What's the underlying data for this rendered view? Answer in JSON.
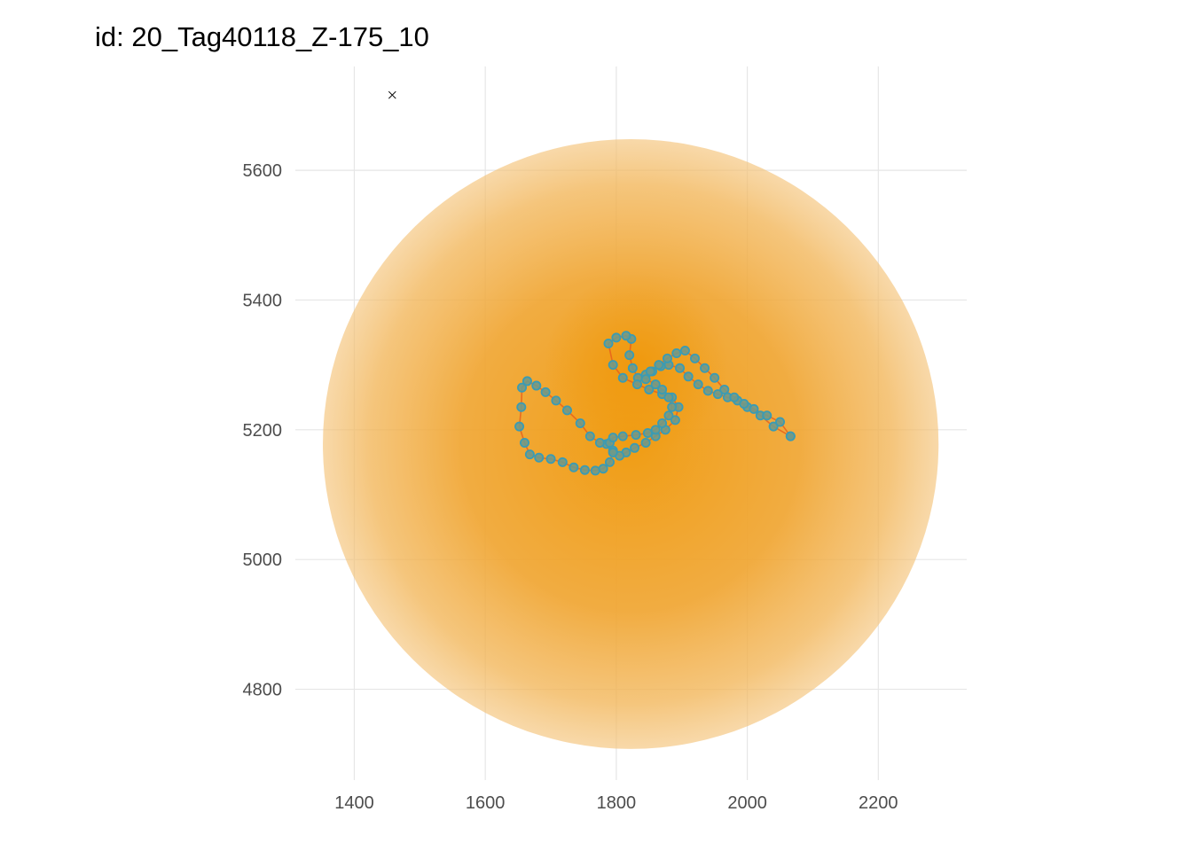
{
  "chart_data": {
    "type": "scatter",
    "title": "id: 20_Tag40118_Z-175_10",
    "xlabel": "",
    "ylabel": "",
    "xlim": [
      1310,
      2335
    ],
    "ylim": [
      4660,
      5760
    ],
    "x_ticks": [
      1400,
      1600,
      1800,
      2000,
      2200
    ],
    "y_ticks": [
      4800,
      5000,
      5200,
      5400,
      5600
    ],
    "grid": true,
    "colors": {
      "error_region": "#f0a020",
      "track_line": "#e8601c",
      "points_fill": "#6f9a8a",
      "points_stroke": "#3b9bb3",
      "marker": "#000000",
      "grid": "#e6e6e6"
    },
    "error_region": {
      "center": [
        1822,
        5178
      ],
      "radius_x": 470,
      "radius_y": 470,
      "core_center": [
        1830,
        5300
      ]
    },
    "receiver_marker": {
      "x": 1458,
      "y": 5716
    },
    "track": {
      "x": [
        2066,
        2040,
        2020,
        2000,
        1985,
        1970,
        1955,
        1940,
        1925,
        1910,
        1897,
        1880,
        1868,
        1855,
        1845,
        1833,
        1825,
        1820,
        1823,
        1815,
        1800,
        1788,
        1795,
        1810,
        1832,
        1850,
        1870,
        1885,
        1895,
        1890,
        1875,
        1860,
        1845,
        1828,
        1815,
        1805,
        1795,
        1785,
        1775,
        1760,
        1745,
        1725,
        1708,
        1692,
        1678,
        1664,
        1656,
        1655,
        1652,
        1660,
        1668,
        1682,
        1700,
        1718,
        1735,
        1752,
        1768,
        1780,
        1790,
        1795,
        1790,
        1795,
        1810,
        1830,
        1848,
        1860,
        1870,
        1880,
        1885,
        1880,
        1870,
        1860,
        1845,
        1852,
        1865,
        1878,
        1892,
        1905,
        1920,
        1935,
        1950,
        1965,
        1980,
        1995,
        2010,
        2030,
        2050,
        2066
      ],
      "y": [
        5190,
        5205,
        5222,
        5235,
        5245,
        5250,
        5255,
        5260,
        5270,
        5282,
        5295,
        5300,
        5298,
        5290,
        5285,
        5280,
        5295,
        5315,
        5340,
        5345,
        5342,
        5333,
        5300,
        5280,
        5270,
        5262,
        5255,
        5250,
        5235,
        5215,
        5200,
        5190,
        5180,
        5172,
        5165,
        5160,
        5168,
        5178,
        5180,
        5190,
        5210,
        5230,
        5245,
        5258,
        5268,
        5275,
        5265,
        5235,
        5205,
        5180,
        5162,
        5157,
        5155,
        5150,
        5142,
        5138,
        5137,
        5140,
        5150,
        5165,
        5180,
        5188,
        5190,
        5192,
        5195,
        5200,
        5210,
        5222,
        5235,
        5250,
        5262,
        5270,
        5278,
        5290,
        5300,
        5310,
        5318,
        5322,
        5310,
        5295,
        5280,
        5262,
        5250,
        5240,
        5232,
        5222,
        5212,
        5190
      ]
    }
  }
}
